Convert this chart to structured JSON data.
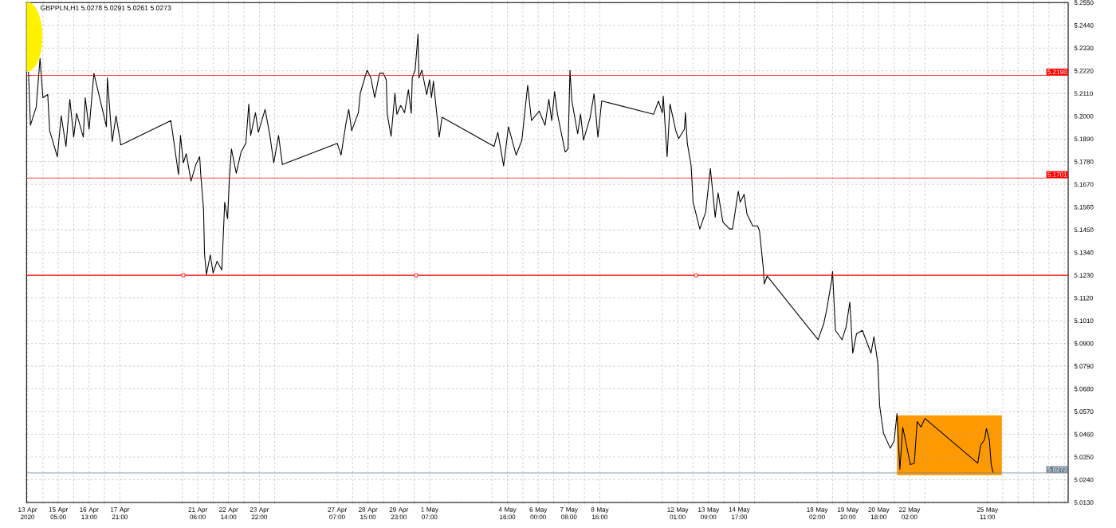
{
  "chart_data": {
    "type": "line",
    "title": "GBPPLN,H1  5.0278 5.0291 5.0261 5.0273",
    "color": "#000000",
    "grid": true,
    "x": [
      "2020-04-13T22:00",
      "2020-04-14T00:00",
      "2020-04-14T06:00",
      "2020-04-14T10:00",
      "2020-04-14T13:00",
      "2020-04-14T18:00",
      "2020-04-14T20:00",
      "2020-04-15T04:00",
      "2020-04-15T08:00",
      "2020-04-15T13:00",
      "2020-04-15T17:00",
      "2020-04-15T21:00",
      "2020-04-16T00:00",
      "2020-04-16T07:00",
      "2020-04-16T09:00",
      "2020-04-16T13:00",
      "2020-04-16T18:00",
      "2020-04-17T04:00",
      "2020-04-17T07:00",
      "2020-04-17T08:00",
      "2020-04-17T13:00",
      "2020-04-17T17:00",
      "2020-04-17T22:00",
      "2020-04-20T02:00",
      "2020-04-20T10:00",
      "2020-04-20T12:00",
      "2020-04-20T15:00",
      "2020-04-20T18:00",
      "2020-04-20T23:00",
      "2020-04-21T04:00",
      "2020-04-21T08:00",
      "2020-04-21T09:00",
      "2020-04-21T12:00",
      "2020-04-21T13:00",
      "2020-04-21T15:00",
      "2020-04-21T19:00",
      "2020-04-21T22:00",
      "2020-04-22T02:00",
      "2020-04-22T07:00",
      "2020-04-22T10:00",
      "2020-04-22T13:00",
      "2020-04-22T15:00",
      "2020-04-22T17:00",
      "2020-04-22T22:00",
      "2020-04-23T03:00",
      "2020-04-23T08:00",
      "2020-04-23T11:00",
      "2020-04-23T13:00",
      "2020-04-23T18:00",
      "2020-04-23T21:00",
      "2020-04-24T04:00",
      "2020-04-24T09:00",
      "2020-04-24T13:00",
      "2020-04-24T18:00",
      "2020-04-24T22:00",
      "2020-04-27T07:00",
      "2020-04-27T11:00",
      "2020-04-27T16:00",
      "2020-04-27T19:00",
      "2020-04-27T22:00",
      "2020-04-28T05:00",
      "2020-04-28T07:00",
      "2020-04-28T14:00",
      "2020-04-28T18:00",
      "2020-04-28T22:00",
      "2020-04-29T03:00",
      "2020-04-29T07:00",
      "2020-04-29T10:00",
      "2020-04-29T11:00",
      "2020-04-29T15:00",
      "2020-04-29T19:00",
      "2020-04-29T21:00",
      "2020-04-30T01:00",
      "2020-04-30T05:00",
      "2020-04-30T09:00",
      "2020-04-30T12:00",
      "2020-04-30T13:00",
      "2020-04-30T16:00",
      "2020-04-30T19:00",
      "2020-04-30T20:00",
      "2020-04-30T23:00",
      "2020-05-01T04:00",
      "2020-05-01T07:00",
      "2020-05-01T09:00",
      "2020-05-01T11:00",
      "2020-05-01T17:00",
      "2020-05-01T20:00",
      "2020-05-04T02:00",
      "2020-05-04T06:00",
      "2020-05-04T12:00",
      "2020-05-04T17:00",
      "2020-05-05T01:00",
      "2020-05-05T07:00",
      "2020-05-05T13:00",
      "2020-05-05T17:00",
      "2020-05-06T01:00",
      "2020-05-06T07:00",
      "2020-05-06T11:00",
      "2020-05-06T14:00",
      "2020-05-06T17:00",
      "2020-05-06T20:00",
      "2020-05-07T04:00",
      "2020-05-07T07:00",
      "2020-05-07T09:00",
      "2020-05-07T11:00",
      "2020-05-07T17:00",
      "2020-05-07T20:00",
      "2020-05-07T23:00",
      "2020-05-08T06:00",
      "2020-05-08T10:00",
      "2020-05-08T14:00",
      "2020-05-08T18:00",
      "2020-05-11T00:00",
      "2020-05-11T05:00",
      "2020-05-11T09:00",
      "2020-05-11T10:00",
      "2020-05-11T14:00",
      "2020-05-11T17:00",
      "2020-05-11T23:00",
      "2020-05-12T02:00",
      "2020-05-12T08:00",
      "2020-05-12T09:00",
      "2020-05-12T11:00",
      "2020-05-12T15:00",
      "2020-05-12T17:00",
      "2020-05-13T00:00",
      "2020-05-13T06:00",
      "2020-05-13T09:00",
      "2020-05-13T11:00",
      "2020-05-13T16:00",
      "2020-05-13T19:00",
      "2020-05-14T00:00",
      "2020-05-14T07:00",
      "2020-05-14T10:00",
      "2020-05-14T16:00",
      "2020-05-14T18:00",
      "2020-05-14T22:00",
      "2020-05-15T01:00",
      "2020-05-15T07:00",
      "2020-05-15T12:00",
      "2020-05-15T14:00",
      "2020-05-15T18:00",
      "2020-05-15T19:00",
      "2020-05-15T22:00",
      "2020-05-18T03:00",
      "2020-05-18T09:00",
      "2020-05-18T12:00",
      "2020-05-18T17:00",
      "2020-05-18T18:00",
      "2020-05-18T21:00",
      "2020-05-19T04:00",
      "2020-05-19T08:00",
      "2020-05-19T12:00",
      "2020-05-19T15:00",
      "2020-05-19T19:00",
      "2020-05-20T01:00",
      "2020-05-20T10:00",
      "2020-05-20T13:00",
      "2020-05-20T17:00",
      "2020-05-20T19:00",
      "2020-05-20T23:00",
      "2020-05-21T06:00",
      "2020-05-21T10:00",
      "2020-05-21T13:00",
      "2020-05-21T16:00",
      "2020-05-21T19:00",
      "2020-05-22T03:00",
      "2020-05-22T07:00",
      "2020-05-22T10:00",
      "2020-05-22T14:00",
      "2020-05-22T18:00",
      "2020-05-25T01:00",
      "2020-05-25T04:00",
      "2020-05-25T08:00",
      "2020-05-25T10:00",
      "2020-05-25T13:00",
      "2020-05-25T15:00",
      "2020-05-25T17:00"
    ],
    "values": [
      5.2215,
      5.1956,
      5.2044,
      5.228,
      5.209,
      5.2105,
      5.193,
      5.1804,
      5.2002,
      5.1854,
      5.2082,
      5.1899,
      5.2014,
      5.1899,
      5.209,
      5.1937,
      5.2208,
      5.201,
      5.1949,
      5.2185,
      5.1877,
      5.2002,
      5.1861,
      5.1979,
      5.1717,
      5.1907,
      5.1774,
      5.1819,
      5.1686,
      5.1766,
      5.1804,
      5.1724,
      5.1549,
      5.1336,
      5.1234,
      5.1329,
      5.1241,
      5.1298,
      5.1256,
      5.1584,
      5.1504,
      5.1709,
      5.1842,
      5.1724,
      5.1827,
      5.1869,
      5.2059,
      5.1907,
      5.2017,
      5.1922,
      5.2033,
      5.1907,
      5.1774,
      5.1907,
      5.1766,
      5.1869,
      5.1812,
      5.1964,
      5.2033,
      5.193,
      5.2017,
      5.2112,
      5.2223,
      5.2185,
      5.209,
      5.2208,
      5.2208,
      5.2177,
      5.201,
      5.1903,
      5.2112,
      5.201,
      5.2052,
      5.2017,
      5.2128,
      5.2014,
      5.2185,
      5.2223,
      5.2398,
      5.2185,
      5.2223,
      5.2105,
      5.2177,
      5.209,
      5.217,
      5.1899,
      5.1995,
      5.1854,
      5.1922,
      5.1759,
      5.1949,
      5.1812,
      5.1884,
      5.215,
      5.1979,
      5.2025,
      5.1956,
      5.2082,
      5.1979,
      5.212,
      5.201,
      5.1827,
      5.1842,
      5.2223,
      5.2074,
      5.1915,
      5.201,
      5.1884,
      5.1995,
      5.2109,
      5.1899,
      5.2074,
      5.201,
      5.2074,
      5.2017,
      5.2097,
      5.1804,
      5.2059,
      5.193,
      5.1892,
      5.1937,
      5.2017,
      5.1869,
      5.1759,
      5.1584,
      5.1454,
      5.1534,
      5.1663,
      5.1747,
      5.1511,
      5.1629,
      5.1488,
      5.1454,
      5.1454,
      5.1637,
      5.1584,
      5.1622,
      5.1527,
      5.1469,
      5.1469,
      5.1447,
      5.1264,
      5.1188,
      5.1226,
      5.0918,
      5.0998,
      5.1066,
      5.1203,
      5.1249,
      5.0963,
      5.0918,
      5.0979,
      5.11,
      5.0853,
      5.0948,
      5.0963,
      5.0853,
      5.0933,
      5.0807,
      5.0598,
      5.0465,
      5.0393,
      5.0427,
      5.056,
      5.029,
      5.0495,
      5.0313,
      5.032,
      5.0522,
      5.0495,
      5.0537,
      5.032,
      5.0408,
      5.0434,
      5.0488,
      5.0434,
      5.0313,
      5.0273
    ],
    "xlim": [
      "2020-04-13T20:00",
      "2020-05-28T23:00"
    ],
    "ylim": [
      5.013,
      5.255
    ],
    "xticks": [
      {
        "value": "2020-04-13T21:00",
        "label": "13 Apr 2020"
      },
      {
        "value": "2020-04-14T13:00",
        "label": null
      },
      {
        "value": "2020-04-15T05:00",
        "label": "15 Apr 05:00"
      },
      {
        "value": "2020-04-15T21:00",
        "label": null
      },
      {
        "value": "2020-04-16T13:00",
        "label": "16 Apr 13:00"
      },
      {
        "value": "2020-04-17T05:00",
        "label": null
      },
      {
        "value": "2020-04-17T21:00",
        "label": "17 Apr 21:00"
      },
      {
        "value": "2020-04-20T14:00",
        "label": null
      },
      {
        "value": "2020-04-21T06:00",
        "label": "21 Apr 06:00"
      },
      {
        "value": "2020-04-21T22:00",
        "label": null
      },
      {
        "value": "2020-04-22T14:00",
        "label": "22 Apr 14:00"
      },
      {
        "value": "2020-04-23T06:00",
        "label": null
      },
      {
        "value": "2020-04-23T22:00",
        "label": "23 Apr 22:00"
      },
      {
        "value": "2020-04-24T14:00",
        "label": null
      },
      {
        "value": "2020-04-27T07:00",
        "label": "27 Apr 07:00"
      },
      {
        "value": "2020-04-27T23:00",
        "label": null
      },
      {
        "value": "2020-04-28T15:00",
        "label": "28 Apr 15:00"
      },
      {
        "value": "2020-04-29T07:00",
        "label": null
      },
      {
        "value": "2020-04-29T23:00",
        "label": "29 Apr 23:00"
      },
      {
        "value": "2020-04-30T15:00",
        "label": null
      },
      {
        "value": "2020-05-01T07:00",
        "label": "1 May 07:00"
      },
      {
        "value": "2020-05-04T00:00",
        "label": null
      },
      {
        "value": "2020-05-04T16:00",
        "label": "4 May 16:00"
      },
      {
        "value": "2020-05-05T08:00",
        "label": null
      },
      {
        "value": "2020-05-06T00:00",
        "label": "6 May 00:00"
      },
      {
        "value": "2020-05-06T16:00",
        "label": null
      },
      {
        "value": "2020-05-07T08:00",
        "label": "7 May 08:00"
      },
      {
        "value": "2020-05-08T00:00",
        "label": null
      },
      {
        "value": "2020-05-08T16:00",
        "label": "8 May 16:00"
      },
      {
        "value": "2020-05-11T09:00",
        "label": null
      },
      {
        "value": "2020-05-12T01:00",
        "label": "12 May 01:00"
      },
      {
        "value": "2020-05-12T17:00",
        "label": null
      },
      {
        "value": "2020-05-13T09:00",
        "label": "13 May 09:00"
      },
      {
        "value": "2020-05-14T01:00",
        "label": null
      },
      {
        "value": "2020-05-14T17:00",
        "label": "14 May 17:00"
      },
      {
        "value": "2020-05-15T09:00",
        "label": null
      },
      {
        "value": "2020-05-18T02:00",
        "label": "18 May 02:00"
      },
      {
        "value": "2020-05-18T18:00",
        "label": null
      },
      {
        "value": "2020-05-19T10:00",
        "label": "19 May 10:00"
      },
      {
        "value": "2020-05-20T02:00",
        "label": null
      },
      {
        "value": "2020-05-20T18:00",
        "label": "20 May 18:00"
      },
      {
        "value": "2020-05-21T10:00",
        "label": null
      },
      {
        "value": "2020-05-22T02:00",
        "label": "22 May 02:00"
      },
      {
        "value": "2020-05-22T18:00",
        "label": null
      },
      {
        "value": "2020-05-25T11:00",
        "label": "25 May 11:00"
      },
      {
        "value": "2020-05-26T03:00",
        "label": null
      },
      {
        "value": "2020-05-26T19:00",
        "label": null
      },
      {
        "value": "2020-05-27T11:00",
        "label": null
      },
      {
        "value": "2020-05-28T03:00",
        "label": null
      },
      {
        "value": "2020-05-28T19:00",
        "label": null
      }
    ],
    "yticks": [
      {
        "value": 5.013,
        "label": "5.0130"
      },
      {
        "value": 5.024,
        "label": "5.0240"
      },
      {
        "value": 5.035,
        "label": "5.0350"
      },
      {
        "value": 5.046,
        "label": "5.0460"
      },
      {
        "value": 5.057,
        "label": "5.0570"
      },
      {
        "value": 5.068,
        "label": "5.0680"
      },
      {
        "value": 5.079,
        "label": "5.0790"
      },
      {
        "value": 5.09,
        "label": "5.0900"
      },
      {
        "value": 5.101,
        "label": "5.1010"
      },
      {
        "value": 5.112,
        "label": "5.1120"
      },
      {
        "value": 5.123,
        "label": "5.1230"
      },
      {
        "value": 5.134,
        "label": "5.1340"
      },
      {
        "value": 5.145,
        "label": "5.1450"
      },
      {
        "value": 5.156,
        "label": "5.1560"
      },
      {
        "value": 5.167,
        "label": "5.1670"
      },
      {
        "value": 5.178,
        "label": "5.1780"
      },
      {
        "value": 5.189,
        "label": "5.1890"
      },
      {
        "value": 5.2,
        "label": "5.2000"
      },
      {
        "value": 5.211,
        "label": "5.2110"
      },
      {
        "value": 5.222,
        "label": "5.2220"
      },
      {
        "value": 5.233,
        "label": "5.2330"
      },
      {
        "value": 5.244,
        "label": "5.2440"
      },
      {
        "value": 5.255,
        "label": "5.2550"
      }
    ],
    "ref_lines": [
      {
        "axis": "y",
        "value": 5.2198,
        "label": "5.2198",
        "color": "#ff0000"
      },
      {
        "axis": "y",
        "value": 5.1701,
        "label": "5.1701",
        "color": "#ff0000"
      },
      {
        "axis": "y",
        "value": 5.123,
        "color": "#ff0000"
      },
      {
        "axis": "y",
        "value": 5.0273,
        "label": "5.0273",
        "color": "#708090"
      }
    ]
  }
}
